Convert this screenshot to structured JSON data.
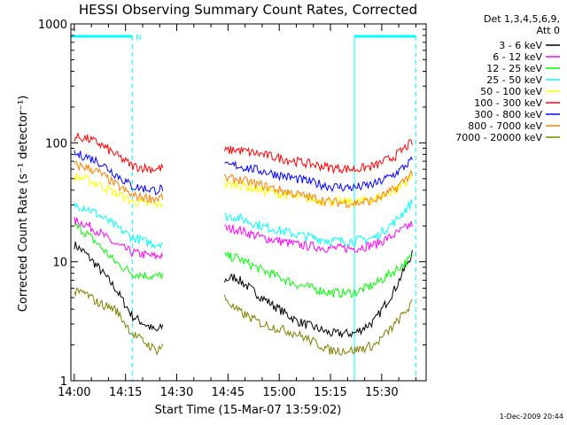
{
  "chart_data": {
    "type": "line",
    "title": "HESSI Observing Summary Count Rates, Corrected",
    "xlabel": "Start Time (15-Mar-07 13:59:02)",
    "ylabel": "Corrected Count Rate (s⁻¹ detector⁻¹)",
    "yscale": "log",
    "ylim": [
      1,
      1000
    ],
    "xlim_minutes": [
      -1,
      103
    ],
    "x_unit": "minutes after 14:00",
    "x_ticks": [
      "14:00",
      "14:15",
      "14:30",
      "14:45",
      "15:00",
      "15:15",
      "15:30"
    ],
    "y_ticks": [
      "1",
      "10",
      "100",
      "1000"
    ],
    "legend_title": [
      "Det 1,3,4,5,6,9,",
      "Att 0"
    ],
    "legend_position": "right",
    "grid": false,
    "timestamp": "1-Dec-2009 20:44",
    "markers": {
      "flag_label": "N",
      "cyan_top_bars_minutes": [
        [
          -1,
          17
        ],
        [
          82,
          100
        ]
      ],
      "dashed_lines_minutes": [
        17,
        100
      ],
      "solid_lines_minutes": [
        82
      ]
    },
    "segments_minutes": [
      [
        0,
        26
      ],
      [
        44,
        99
      ]
    ],
    "series": [
      {
        "name": "3 - 6 keV",
        "color": "#000000",
        "values": [
          14,
          12,
          9,
          6,
          3.5,
          2.6,
          7,
          7.5,
          5,
          3.2,
          2.5,
          2.5,
          3.2,
          6,
          12
        ]
      },
      {
        "name": "6 - 12 keV",
        "color": "#ff00ff",
        "values": [
          22,
          21,
          18,
          14,
          12,
          11,
          19,
          19,
          16,
          14,
          13,
          13,
          14,
          17,
          21
        ]
      },
      {
        "name": "12 - 25 keV",
        "color": "#00ff00",
        "values": [
          20,
          18,
          14,
          10,
          8,
          7.5,
          11,
          11,
          8.5,
          6.5,
          5.5,
          5.5,
          6.5,
          8.5,
          11
        ]
      },
      {
        "name": "25 - 50 keV",
        "color": "#00ffff",
        "values": [
          30,
          29,
          25,
          20,
          16,
          14,
          24,
          24,
          20,
          17,
          15,
          15,
          16,
          22,
          32
        ]
      },
      {
        "name": "50 - 100 keV",
        "color": "#ffff00",
        "values": [
          52,
          50,
          45,
          38,
          32,
          30,
          44,
          45,
          40,
          35,
          32,
          32,
          34,
          40,
          52
        ]
      },
      {
        "name": "100 - 300 keV",
        "color": "#ff0000",
        "values": [
          112,
          110,
          100,
          80,
          64,
          60,
          85,
          88,
          80,
          70,
          62,
          60,
          64,
          78,
          102
        ]
      },
      {
        "name": "300 - 800 keV",
        "color": "#0000ff",
        "values": [
          80,
          78,
          70,
          55,
          43,
          40,
          63,
          65,
          58,
          50,
          43,
          42,
          45,
          55,
          72
        ]
      },
      {
        "name": "800 - 7000 keV",
        "color": "#ff8000",
        "values": [
          65,
          63,
          57,
          45,
          36,
          34,
          50,
          50,
          44,
          37,
          32,
          31,
          33,
          41,
          57
        ]
      },
      {
        "name": "7000 - 20000 keV",
        "color": "#808000",
        "values": [
          5.5,
          5.5,
          4.5,
          4,
          2.5,
          1.8,
          5,
          4,
          3,
          2.5,
          1.8,
          1.8,
          2,
          3,
          4.5
        ]
      }
    ],
    "series_x_minutes": [
      0,
      3,
      7,
      12,
      17,
      24,
      44,
      47,
      55,
      65,
      75,
      82,
      88,
      94,
      99
    ]
  }
}
